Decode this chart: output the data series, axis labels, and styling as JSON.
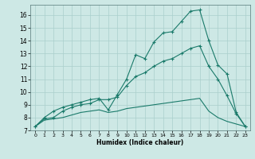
{
  "background_color": "#cde8e5",
  "grid_color": "#aacfcc",
  "line_color": "#1a7a6a",
  "x_label": "Humidex (Indice chaleur)",
  "ylim": [
    7,
    16.8
  ],
  "xlim": [
    -0.5,
    23.5
  ],
  "yticks": [
    7,
    8,
    9,
    10,
    11,
    12,
    13,
    14,
    15,
    16
  ],
  "xticks": [
    0,
    1,
    2,
    3,
    4,
    5,
    6,
    7,
    8,
    9,
    10,
    11,
    12,
    13,
    14,
    15,
    16,
    17,
    18,
    19,
    20,
    21,
    22,
    23
  ],
  "series1_x": [
    0,
    1,
    2,
    3,
    4,
    5,
    6,
    7,
    8,
    9,
    10,
    11,
    12,
    13,
    14,
    15,
    16,
    17,
    18,
    19,
    20,
    21,
    22,
    23
  ],
  "series1_y": [
    7.3,
    8.0,
    8.5,
    8.8,
    9.0,
    9.2,
    9.4,
    9.5,
    8.6,
    9.8,
    11.0,
    12.9,
    12.6,
    13.9,
    14.6,
    14.7,
    15.5,
    16.3,
    16.4,
    14.0,
    12.1,
    11.4,
    8.4,
    7.3
  ],
  "series2_x": [
    0,
    1,
    2,
    3,
    4,
    5,
    6,
    7,
    8,
    9,
    10,
    11,
    12,
    13,
    14,
    15,
    16,
    17,
    18,
    19,
    20,
    21,
    22,
    23
  ],
  "series2_y": [
    7.3,
    7.9,
    8.0,
    8.5,
    8.8,
    9.0,
    9.1,
    9.4,
    9.4,
    9.6,
    10.5,
    11.2,
    11.5,
    12.0,
    12.4,
    12.6,
    13.0,
    13.4,
    13.6,
    12.0,
    11.0,
    9.7,
    8.3,
    7.3
  ],
  "series3_x": [
    0,
    1,
    2,
    3,
    4,
    5,
    6,
    7,
    8,
    9,
    10,
    11,
    12,
    13,
    14,
    15,
    16,
    17,
    18,
    19,
    20,
    21,
    22,
    23
  ],
  "series3_y": [
    7.3,
    7.8,
    7.9,
    8.0,
    8.2,
    8.4,
    8.5,
    8.6,
    8.4,
    8.5,
    8.7,
    8.8,
    8.9,
    9.0,
    9.1,
    9.2,
    9.3,
    9.4,
    9.5,
    8.5,
    8.0,
    7.7,
    7.5,
    7.3
  ]
}
